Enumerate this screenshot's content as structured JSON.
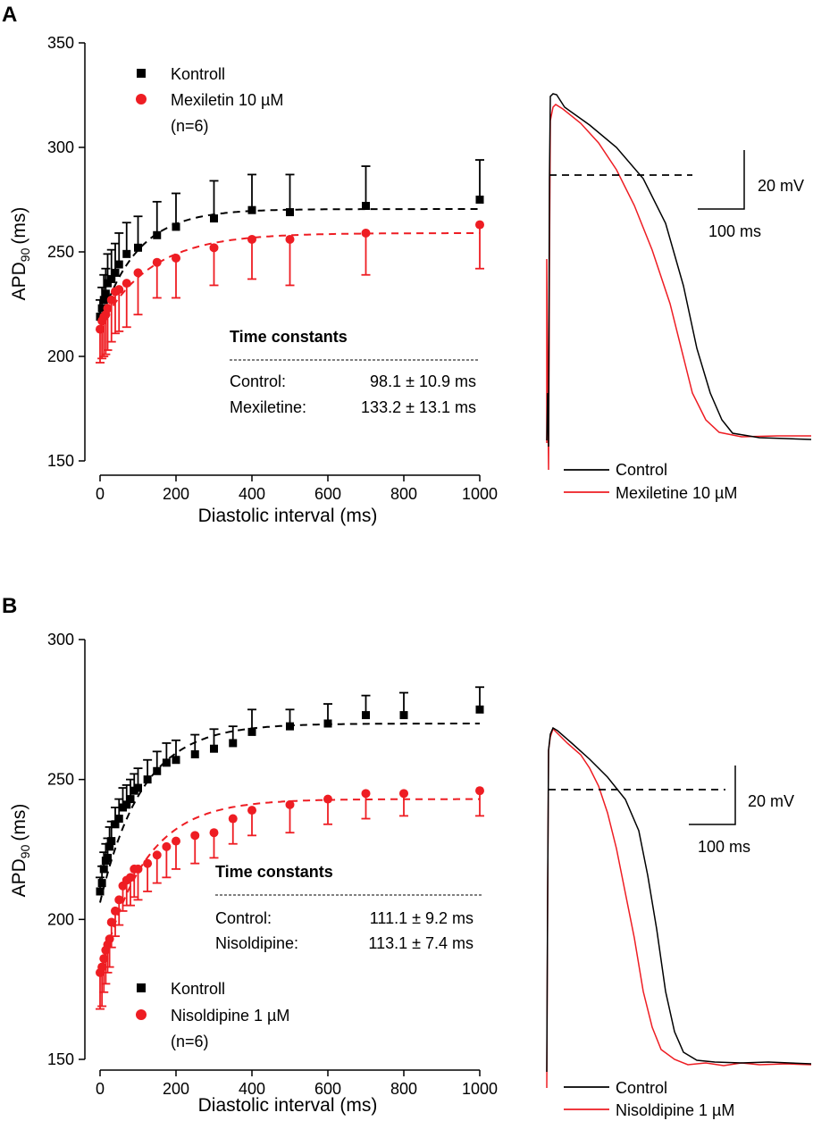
{
  "chart_data": [
    {
      "type": "scatter",
      "panel": "A",
      "xlabel": "Diastolic interval (ms)",
      "ylabel_main": "APD",
      "ylabel_sub": "90",
      "ylabel_unit": "(ms)",
      "xlim": [
        0,
        1000
      ],
      "ylim": [
        150,
        350
      ],
      "xticks": [
        0,
        200,
        400,
        600,
        800,
        1000
      ],
      "yticks": [
        150,
        200,
        250,
        300,
        350
      ],
      "legend": [
        "Kontroll",
        "Mexiletin 10 µM",
        "(n=6)"
      ],
      "series": [
        {
          "name": "Kontroll",
          "color": "#000000",
          "marker": "square",
          "err_dir": "up",
          "x": [
            0,
            5,
            10,
            15,
            20,
            30,
            40,
            50,
            70,
            100,
            150,
            200,
            300,
            400,
            500,
            700,
            1000
          ],
          "y": [
            219,
            223,
            227,
            230,
            235,
            237,
            240,
            244,
            249,
            252,
            258,
            262,
            266,
            270,
            269,
            272,
            275
          ],
          "err": [
            8,
            10,
            12,
            12,
            14,
            14,
            14,
            15,
            15,
            15,
            16,
            16,
            18,
            17,
            18,
            19,
            19
          ],
          "fit_tau": 98.1,
          "fit_min": 216,
          "fit_max": 270.5
        },
        {
          "name": "Mexiletin 10 µM",
          "color": "#ee1d23",
          "marker": "circle",
          "err_dir": "down",
          "x": [
            0,
            5,
            10,
            15,
            20,
            30,
            40,
            50,
            70,
            100,
            150,
            200,
            300,
            400,
            500,
            700,
            1000
          ],
          "y": [
            213,
            217,
            219,
            220,
            223,
            227,
            231,
            232,
            235,
            240,
            245,
            247,
            252,
            256,
            256,
            259,
            263
          ],
          "err": [
            16,
            18,
            19,
            19,
            20,
            20,
            20,
            20,
            21,
            20,
            17,
            19,
            18,
            19,
            22,
            20,
            21
          ],
          "fit_tau": 133.2,
          "fit_min": 214,
          "fit_max": 259
        }
      ],
      "time_constants": {
        "title": "Time constants",
        "rows": [
          {
            "label": "Control:",
            "value": "98.1 ± 10.9 ms"
          },
          {
            "label": "Mexiletine:",
            "value": "133.2 ± 13.1 ms"
          }
        ]
      }
    },
    {
      "type": "scatter",
      "panel": "B",
      "xlabel": "Diastolic interval (ms)",
      "ylabel_main": "APD",
      "ylabel_sub": "90",
      "ylabel_unit": "(ms)",
      "xlim": [
        0,
        1000
      ],
      "ylim": [
        150,
        300
      ],
      "xticks": [
        0,
        200,
        400,
        600,
        800,
        1000
      ],
      "yticks": [
        150,
        200,
        250,
        300
      ],
      "legend": [
        "Kontroll",
        "Nisoldipine 1 µM",
        "(n=6)"
      ],
      "series": [
        {
          "name": "Kontroll",
          "color": "#000000",
          "marker": "square",
          "err_dir": "up",
          "x": [
            0,
            5,
            10,
            15,
            20,
            25,
            30,
            40,
            50,
            60,
            70,
            80,
            90,
            100,
            125,
            150,
            175,
            200,
            250,
            300,
            350,
            400,
            500,
            600,
            700,
            800,
            1000
          ],
          "y": [
            210,
            213,
            218,
            221,
            222,
            226,
            228,
            234,
            236,
            240,
            241,
            243,
            246,
            247,
            250,
            253,
            256,
            257,
            259,
            261,
            263,
            267,
            269,
            270,
            273,
            273,
            275
          ],
          "err": [
            5,
            6,
            6,
            6,
            7,
            7,
            7,
            6,
            7,
            7,
            7,
            7,
            6,
            7,
            7,
            7,
            7,
            7,
            7,
            7,
            6,
            8,
            6,
            7,
            7,
            8,
            8
          ],
          "fit_tau": 111.1,
          "fit_min": 206,
          "fit_max": 270
        },
        {
          "name": "Nisoldipine 1 µM",
          "color": "#ee1d23",
          "marker": "circle",
          "err_dir": "down",
          "x": [
            0,
            5,
            10,
            15,
            20,
            25,
            30,
            40,
            50,
            60,
            70,
            80,
            90,
            100,
            125,
            150,
            175,
            200,
            250,
            300,
            350,
            400,
            500,
            600,
            700,
            800,
            1000
          ],
          "y": [
            181,
            183,
            186,
            189,
            191,
            193,
            199,
            203,
            207,
            212,
            214,
            215,
            218,
            218,
            220,
            223,
            226,
            228,
            230,
            231,
            236,
            239,
            241,
            243,
            245,
            245,
            246
          ],
          "err": [
            13,
            14,
            12,
            12,
            10,
            10,
            9,
            9,
            9,
            9,
            9,
            10,
            10,
            11,
            10,
            10,
            11,
            10,
            10,
            9,
            9,
            9,
            10,
            9,
            9,
            8,
            9
          ],
          "fit_tau": 113.1,
          "fit_min": 180,
          "fit_max": 243
        }
      ],
      "time_constants": {
        "title": "Time constants",
        "rows": [
          {
            "label": "Control:",
            "value": "111.1 ± 9.2 ms"
          },
          {
            "label": "Nisoldipine:",
            "value": "113.1 ± 7.4 ms"
          }
        ]
      }
    }
  ],
  "traces": [
    {
      "panel": "A",
      "legend": [
        "Control",
        "Mexiletine 10 µM"
      ],
      "scale": {
        "voltage": "20 mV",
        "time": "100 ms"
      }
    },
    {
      "panel": "B",
      "legend": [
        "Control",
        "Nisoldipine 1 µM"
      ],
      "scale": {
        "voltage": "20 mV",
        "time": "100 ms"
      }
    }
  ],
  "panel_labels": [
    "A",
    "B"
  ],
  "colors": {
    "control": "#000000",
    "drug": "#ee1d23"
  }
}
